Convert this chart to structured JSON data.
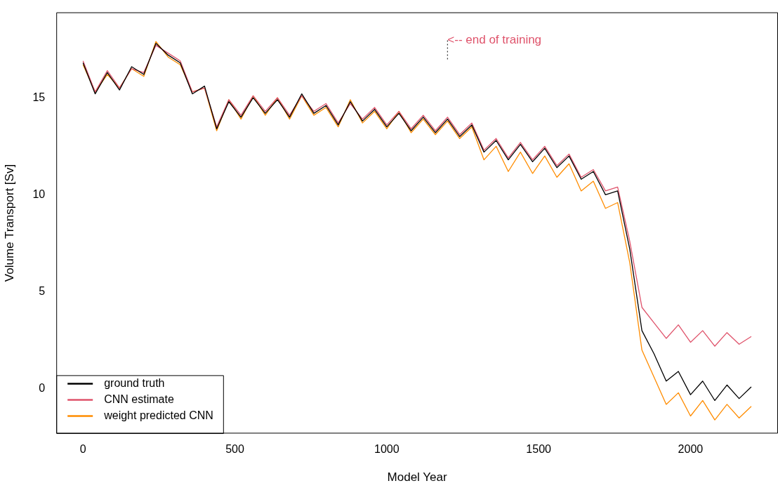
{
  "chart_data": {
    "type": "line",
    "xlabel": "Model Year",
    "ylabel": "Volume Transport [Sv]",
    "x": [
      0,
      40,
      80,
      120,
      160,
      200,
      240,
      280,
      320,
      360,
      400,
      440,
      480,
      520,
      560,
      600,
      640,
      680,
      720,
      760,
      800,
      840,
      880,
      920,
      960,
      1000,
      1040,
      1080,
      1120,
      1160,
      1200,
      1240,
      1280,
      1320,
      1360,
      1400,
      1440,
      1480,
      1520,
      1560,
      1600,
      1640,
      1680,
      1720,
      1760,
      1800,
      1840,
      1880,
      1920,
      1960,
      2000,
      2040,
      2080,
      2120,
      2160,
      2200
    ],
    "series": [
      {
        "name": "ground truth",
        "color": "#000000",
        "values": [
          16.8,
          15.2,
          16.3,
          15.4,
          16.6,
          16.2,
          17.8,
          17.2,
          16.8,
          15.2,
          15.6,
          13.4,
          14.8,
          14.0,
          15.0,
          14.2,
          14.9,
          14.0,
          15.2,
          14.2,
          14.6,
          13.6,
          14.8,
          13.8,
          14.4,
          13.5,
          14.2,
          13.3,
          14.0,
          13.2,
          13.9,
          13.0,
          13.6,
          12.2,
          12.8,
          11.8,
          12.6,
          11.7,
          12.4,
          11.4,
          12.0,
          10.8,
          11.2,
          10.0,
          10.2,
          7.2,
          3.0,
          1.8,
          0.4,
          0.9,
          -0.3,
          0.4,
          -0.6,
          0.2,
          -0.5,
          0.1
        ]
      },
      {
        "name": "CNN estimate",
        "color": "#df536b",
        "values": [
          16.9,
          15.3,
          16.4,
          15.5,
          16.5,
          16.3,
          17.7,
          17.3,
          16.9,
          15.3,
          15.5,
          13.5,
          14.9,
          14.1,
          15.1,
          14.3,
          15.0,
          14.1,
          15.1,
          14.3,
          14.7,
          13.7,
          14.7,
          13.9,
          14.5,
          13.6,
          14.3,
          13.4,
          14.1,
          13.3,
          14.0,
          13.1,
          13.7,
          12.3,
          12.9,
          11.9,
          12.7,
          11.8,
          12.5,
          11.5,
          12.1,
          10.9,
          11.3,
          10.2,
          10.4,
          7.6,
          4.2,
          3.4,
          2.6,
          3.3,
          2.4,
          3.0,
          2.2,
          2.9,
          2.3,
          2.7
        ]
      },
      {
        "name": "weight predicted CNN",
        "color": "#ff8c00",
        "values": [
          16.7,
          15.3,
          16.2,
          15.5,
          16.5,
          16.1,
          17.9,
          17.1,
          16.7,
          15.3,
          15.5,
          13.3,
          14.9,
          13.9,
          15.1,
          14.1,
          15.0,
          13.9,
          15.1,
          14.1,
          14.5,
          13.5,
          14.9,
          13.7,
          14.3,
          13.4,
          14.3,
          13.2,
          13.9,
          13.1,
          13.8,
          12.9,
          13.5,
          11.8,
          12.5,
          11.2,
          12.2,
          11.1,
          12.0,
          10.9,
          11.6,
          10.2,
          10.7,
          9.3,
          9.6,
          6.5,
          2.0,
          0.6,
          -0.8,
          -0.2,
          -1.4,
          -0.6,
          -1.6,
          -0.8,
          -1.5,
          -0.9
        ]
      }
    ],
    "xlim": [
      -88,
      2288
    ],
    "ylim": [
      -2.3,
      19.4
    ],
    "xticks": [
      0,
      500,
      1000,
      1500,
      2000
    ],
    "yticks": [
      0,
      5,
      10,
      15
    ],
    "grid": false,
    "legend": "bottom left",
    "marker": "none",
    "line_style": "solid",
    "ref_lines": [
      {
        "axis": "x",
        "value": 1200,
        "label": "<-- end of training",
        "color": "#333333",
        "line_style": "dotted"
      }
    ]
  }
}
